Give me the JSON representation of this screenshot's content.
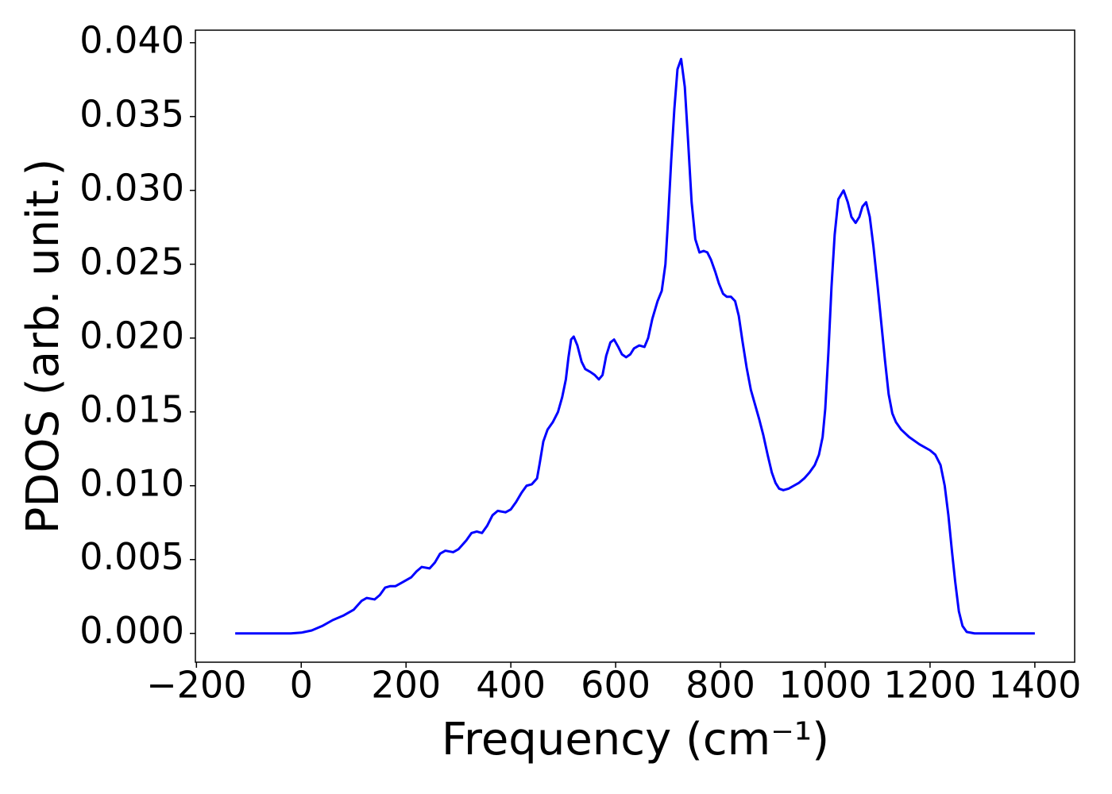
{
  "chart_data": {
    "type": "line",
    "xlabel": "Frequency (cm⁻¹)",
    "ylabel": "PDOS (arb. unit.)",
    "xlim": [
      -202,
      1476
    ],
    "ylim": [
      -0.00195,
      0.04085
    ],
    "xticks": [
      {
        "value": -200,
        "label": "−200"
      },
      0,
      200,
      400,
      600,
      800,
      1000,
      1200,
      1400
    ],
    "yticks": [
      {
        "value": 0,
        "label": "0.000"
      },
      {
        "value": 0.005,
        "label": "0.005"
      },
      {
        "value": 0.01,
        "label": "0.010"
      },
      {
        "value": 0.015,
        "label": "0.015"
      },
      {
        "value": 0.02,
        "label": "0.020"
      },
      {
        "value": 0.025,
        "label": "0.025"
      },
      {
        "value": 0.03,
        "label": "0.030"
      },
      {
        "value": 0.035,
        "label": "0.035"
      },
      {
        "value": 0.04,
        "label": "0.040"
      }
    ],
    "grid": false,
    "series": [
      {
        "color": "#0000ff",
        "x": [
          -126,
          -20,
          0,
          20,
          40,
          60,
          80,
          100,
          115,
          125,
          140,
          150,
          160,
          170,
          180,
          195,
          210,
          220,
          230,
          245,
          255,
          265,
          275,
          290,
          300,
          315,
          325,
          335,
          345,
          355,
          365,
          375,
          390,
          400,
          410,
          420,
          430,
          440,
          450,
          455,
          462,
          470,
          480,
          490,
          498,
          505,
          510,
          515,
          520,
          527,
          535,
          542,
          552,
          560,
          568,
          575,
          582,
          590,
          597,
          605,
          612,
          620,
          628,
          635,
          645,
          655,
          662,
          670,
          680,
          688,
          695,
          700,
          706,
          712,
          718,
          725,
          732,
          738,
          745,
          752,
          760,
          768,
          775,
          782,
          790,
          797,
          805,
          812,
          820,
          828,
          835,
          842,
          850,
          858,
          866,
          874,
          882,
          890,
          898,
          905,
          912,
          920,
          930,
          940,
          950,
          960,
          970,
          980,
          988,
          995,
          1000,
          1006,
          1012,
          1018,
          1025,
          1035,
          1043,
          1050,
          1058,
          1065,
          1071,
          1078,
          1085,
          1092,
          1100,
          1107,
          1114,
          1121,
          1128,
          1135,
          1145,
          1160,
          1180,
          1200,
          1210,
          1220,
          1228,
          1235,
          1242,
          1248,
          1255,
          1262,
          1270,
          1285,
          1400
        ],
        "values": [
          0,
          0,
          5e-05,
          0.0002,
          0.0005,
          0.0009,
          0.0012,
          0.0016,
          0.0022,
          0.0024,
          0.0023,
          0.0026,
          0.0031,
          0.0032,
          0.0032,
          0.0035,
          0.0038,
          0.0042,
          0.0045,
          0.0044,
          0.0048,
          0.0054,
          0.0056,
          0.0055,
          0.0057,
          0.0063,
          0.0068,
          0.0069,
          0.0068,
          0.0073,
          0.008,
          0.0083,
          0.0082,
          0.0084,
          0.0089,
          0.0095,
          0.01,
          0.0101,
          0.0105,
          0.0115,
          0.013,
          0.0138,
          0.0143,
          0.015,
          0.016,
          0.0172,
          0.0187,
          0.0199,
          0.0201,
          0.0195,
          0.0184,
          0.0179,
          0.0177,
          0.0175,
          0.0172,
          0.0175,
          0.0188,
          0.0197,
          0.0199,
          0.0194,
          0.0189,
          0.0187,
          0.0189,
          0.0193,
          0.0195,
          0.0194,
          0.02,
          0.0213,
          0.0225,
          0.0232,
          0.025,
          0.028,
          0.032,
          0.0355,
          0.0382,
          0.0389,
          0.037,
          0.0335,
          0.0292,
          0.0267,
          0.0258,
          0.0259,
          0.0258,
          0.0253,
          0.0245,
          0.0237,
          0.023,
          0.0228,
          0.0228,
          0.0225,
          0.0215,
          0.0198,
          0.018,
          0.0165,
          0.0155,
          0.0145,
          0.0134,
          0.0121,
          0.0109,
          0.0102,
          0.0098,
          0.0097,
          0.0098,
          0.01,
          0.0102,
          0.0105,
          0.0109,
          0.0114,
          0.0121,
          0.0133,
          0.0152,
          0.019,
          0.0235,
          0.027,
          0.0294,
          0.03,
          0.0292,
          0.0282,
          0.0278,
          0.0282,
          0.0289,
          0.0292,
          0.0282,
          0.0262,
          0.0235,
          0.021,
          0.0185,
          0.0162,
          0.0149,
          0.0143,
          0.0138,
          0.0133,
          0.0128,
          0.0124,
          0.0121,
          0.0114,
          0.01,
          0.008,
          0.0055,
          0.0035,
          0.0015,
          0.0005,
          0.0001,
          0,
          0
        ]
      }
    ]
  }
}
